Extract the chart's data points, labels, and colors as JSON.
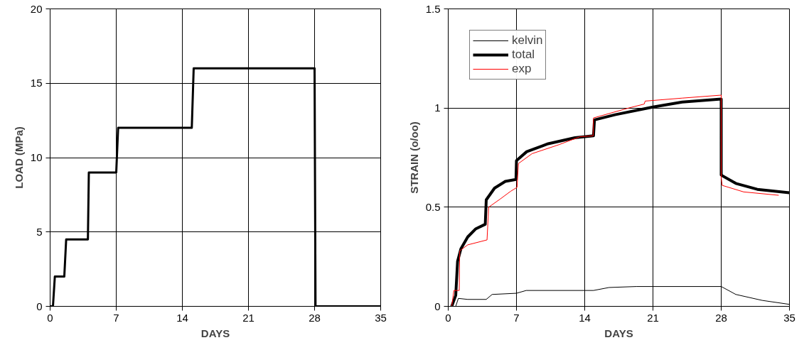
{
  "chart_data": [
    {
      "type": "line",
      "xlabel": "DAYS",
      "ylabel": "LOAD (MPa)",
      "xlim": [
        0,
        35
      ],
      "ylim": [
        0,
        20
      ],
      "xticks": [
        0,
        7,
        14,
        21,
        28,
        35
      ],
      "yticks": [
        0,
        5,
        10,
        15,
        20
      ],
      "grid": true,
      "legend": false,
      "series": [
        {
          "color": "#000000",
          "x": [
            0,
            0.3,
            0.5,
            1.5,
            1.7,
            4,
            4.1,
            7,
            7.2,
            15,
            15.2,
            28,
            28.1,
            35
          ],
          "values": [
            0,
            0,
            2,
            2,
            4.5,
            4.5,
            9,
            9,
            12,
            12,
            16,
            16,
            0,
            0
          ]
        }
      ]
    },
    {
      "type": "line",
      "xlabel": "DAYS",
      "ylabel": "STRAIN (o/oo)",
      "xlim": [
        0,
        35
      ],
      "ylim": [
        0,
        1.5
      ],
      "xticks": [
        0,
        7,
        14,
        21,
        28,
        35
      ],
      "yticks": [
        0,
        0.5,
        1,
        1.5
      ],
      "grid": true,
      "legend": "top left",
      "series": [
        {
          "name": "kelvin",
          "color": "#000000",
          "x": [
            0,
            0.77,
            1.04,
            2,
            3.9,
            4.5,
            7,
            8,
            14.9,
            16.5,
            19.3,
            28,
            29.5,
            32.2,
            35
          ],
          "values": [
            0,
            0,
            0.04,
            0.035,
            0.035,
            0.06,
            0.066,
            0.08,
            0.08,
            0.095,
            0.1,
            0.1,
            0.06,
            0.03,
            0.01
          ]
        },
        {
          "name": "total",
          "color": "#000000",
          "x": [
            0.36,
            0.77,
            0.96,
            1.3,
            2.0,
            2.8,
            3.8,
            3.9,
            4.75,
            5.85,
            6.95,
            7.0,
            8.05,
            10.25,
            13,
            14.9,
            15,
            17.1,
            21,
            24,
            28,
            28,
            29.5,
            31.7,
            35
          ],
          "values": [
            0,
            0.055,
            0.227,
            0.29,
            0.35,
            0.39,
            0.414,
            0.537,
            0.596,
            0.63,
            0.64,
            0.735,
            0.78,
            0.82,
            0.85,
            0.86,
            0.94,
            0.966,
            1.005,
            1.03,
            1.045,
            0.662,
            0.62,
            0.59,
            0.573
          ]
        },
        {
          "name": "exp",
          "color": "#ff0000",
          "x": [
            0.36,
            0.58,
            1.13,
            1.18,
            2.0,
            3.98,
            4.15,
            5.3,
            6.4,
            7.06,
            7.2,
            8.6,
            11.35,
            13.5,
            14.86,
            14.9,
            18.5,
            20.1,
            20.2,
            24,
            28,
            28,
            28.1,
            30.3,
            33.9
          ],
          "values": [
            0,
            0.08,
            0.08,
            0.28,
            0.31,
            0.335,
            0.5,
            0.54,
            0.58,
            0.6,
            0.72,
            0.77,
            0.815,
            0.855,
            0.86,
            0.95,
            1.0,
            1.02,
            1.035,
            1.05,
            1.065,
            0.65,
            0.61,
            0.577,
            0.56
          ]
        }
      ]
    }
  ]
}
